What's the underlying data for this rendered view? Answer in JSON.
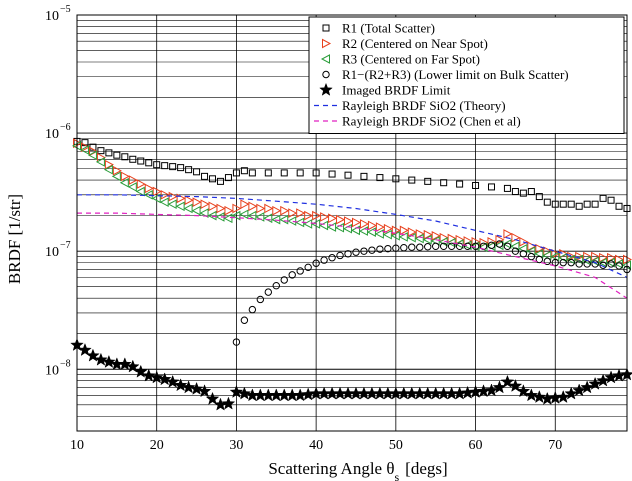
{
  "chart_data": {
    "type": "scatter",
    "title": "",
    "xlabel": "Scattering Angle θ",
    "xlabel_sub": "s",
    "xlabel_unit": "[degs]",
    "ylabel": "BRDF [1/str]",
    "xlim": [
      10,
      79
    ],
    "ylim": [
      3e-09,
      1e-05
    ],
    "yscale": "log",
    "grid": true,
    "legend_position": "top-right",
    "x_ticks": [
      10,
      20,
      30,
      40,
      50,
      60,
      70
    ],
    "y_ticks": [
      {
        "value": 1e-05,
        "mantissa": "10",
        "exp": "−5"
      },
      {
        "value": 1e-06,
        "mantissa": "10",
        "exp": "−6"
      },
      {
        "value": 1e-07,
        "mantissa": "10",
        "exp": "−7"
      },
      {
        "value": 1e-08,
        "mantissa": "10",
        "exp": "−8"
      }
    ],
    "series": [
      {
        "name": "R1 (Total Scatter)",
        "marker": "square",
        "color": "#000000",
        "x": [
          10,
          11,
          12,
          13,
          14,
          15,
          16,
          17,
          18,
          19,
          20,
          21,
          22,
          23,
          24,
          25,
          26,
          27,
          28,
          29,
          30,
          31,
          32,
          34,
          36,
          38,
          40,
          42,
          44,
          46,
          48,
          50,
          52,
          54,
          56,
          58,
          60,
          62,
          64,
          65,
          66,
          67,
          68,
          69,
          70,
          71,
          72,
          73,
          74,
          75,
          76,
          77,
          78,
          79
        ],
        "y": [
          8.5e-07,
          8.3e-07,
          7.6e-07,
          7.1e-07,
          6.8e-07,
          6.5e-07,
          6.3e-07,
          6e-07,
          5.8e-07,
          5.6e-07,
          5.4e-07,
          5.3e-07,
          5.2e-07,
          5.1e-07,
          4.9e-07,
          4.7e-07,
          4.3e-07,
          4.1e-07,
          3.9e-07,
          4.2e-07,
          4.6e-07,
          4.8e-07,
          4.6e-07,
          4.6e-07,
          4.6e-07,
          4.6e-07,
          4.6e-07,
          4.5e-07,
          4.4e-07,
          4.3e-07,
          4.2e-07,
          4.1e-07,
          4e-07,
          3.9e-07,
          3.8e-07,
          3.7e-07,
          3.6e-07,
          3.5e-07,
          3.4e-07,
          3.2e-07,
          3.1e-07,
          3.2e-07,
          2.9e-07,
          2.6e-07,
          2.5e-07,
          2.5e-07,
          2.5e-07,
          2.4e-07,
          2.5e-07,
          2.5e-07,
          2.8e-07,
          2.7e-07,
          2.4e-07,
          2.3e-07
        ]
      },
      {
        "name": "R2 (Centered on Near Spot)",
        "marker": "triangle-right",
        "color": "#e8401c",
        "x": [
          10,
          11,
          12,
          13,
          14,
          15,
          16,
          17,
          18,
          19,
          20,
          21,
          22,
          23,
          24,
          25,
          26,
          27,
          28,
          29,
          30,
          31,
          32,
          33,
          34,
          35,
          36,
          37,
          38,
          39,
          40,
          41,
          42,
          43,
          44,
          45,
          46,
          47,
          48,
          49,
          50,
          51,
          52,
          53,
          54,
          55,
          56,
          57,
          58,
          59,
          60,
          61,
          62,
          63,
          64,
          65,
          66,
          67,
          68,
          69,
          70,
          71,
          72,
          73,
          74,
          75,
          76,
          77,
          78,
          79
        ],
        "y": [
          8.2e-07,
          7.6e-07,
          7e-07,
          6.2e-07,
          5.4e-07,
          4.8e-07,
          4.3e-07,
          4e-07,
          3.7e-07,
          3.4e-07,
          3.2e-07,
          3e-07,
          2.9e-07,
          2.8e-07,
          2.7e-07,
          2.6e-07,
          2.5e-07,
          2.4e-07,
          2.3e-07,
          2.2e-07,
          2.3e-07,
          2.5e-07,
          2.4e-07,
          2.3e-07,
          2.3e-07,
          2.2e-07,
          2.2e-07,
          2.1e-07,
          2.1e-07,
          2e-07,
          2e-07,
          1.95e-07,
          1.9e-07,
          1.85e-07,
          1.8e-07,
          1.75e-07,
          1.7e-07,
          1.65e-07,
          1.6e-07,
          1.55e-07,
          1.5e-07,
          1.5e-07,
          1.45e-07,
          1.4e-07,
          1.38e-07,
          1.35e-07,
          1.3e-07,
          1.28e-07,
          1.25e-07,
          1.22e-07,
          1.2e-07,
          1.18e-07,
          1.2e-07,
          1.25e-07,
          1.4e-07,
          1.3e-07,
          1.2e-07,
          1.1e-07,
          1.05e-07,
          1e-07,
          9.5e-08,
          9.5e-08,
          9e-08,
          9e-08,
          9e-08,
          9e-08,
          8.8e-08,
          8.8e-08,
          8.5e-08,
          8.5e-08
        ]
      },
      {
        "name": "R3 (Centered on Far Spot)",
        "marker": "triangle-left",
        "color": "#2a9d3a",
        "x": [
          10,
          11,
          12,
          13,
          14,
          15,
          16,
          17,
          18,
          19,
          20,
          21,
          22,
          23,
          24,
          25,
          26,
          27,
          28,
          29,
          30,
          31,
          32,
          33,
          34,
          35,
          36,
          37,
          38,
          39,
          40,
          41,
          42,
          43,
          44,
          45,
          46,
          47,
          48,
          49,
          50,
          51,
          52,
          53,
          54,
          55,
          56,
          57,
          58,
          59,
          60,
          61,
          62,
          63,
          64,
          65,
          66,
          67,
          68,
          69,
          70,
          71,
          72,
          73,
          74,
          75,
          76,
          77,
          78,
          79
        ],
        "y": [
          7.8e-07,
          7.2e-07,
          6.5e-07,
          5.7e-07,
          4.9e-07,
          4.3e-07,
          3.8e-07,
          3.5e-07,
          3.2e-07,
          3e-07,
          2.8e-07,
          2.6e-07,
          2.5e-07,
          2.4e-07,
          2.3e-07,
          2.2e-07,
          2.1e-07,
          2e-07,
          1.95e-07,
          1.9e-07,
          2e-07,
          2.05e-07,
          2e-07,
          1.95e-07,
          1.9e-07,
          1.85e-07,
          1.85e-07,
          1.8e-07,
          1.75e-07,
          1.7e-07,
          1.7e-07,
          1.65e-07,
          1.6e-07,
          1.58e-07,
          1.55e-07,
          1.5e-07,
          1.48e-07,
          1.45e-07,
          1.4e-07,
          1.38e-07,
          1.35e-07,
          1.32e-07,
          1.3e-07,
          1.28e-07,
          1.25e-07,
          1.22e-07,
          1.2e-07,
          1.18e-07,
          1.15e-07,
          1.12e-07,
          1.1e-07,
          1.08e-07,
          1.1e-07,
          1.12e-07,
          1.15e-07,
          1.1e-07,
          1.05e-07,
          1e-07,
          9.5e-08,
          9.2e-08,
          9e-08,
          8.8e-08,
          8.5e-08,
          8.5e-08,
          8.3e-08,
          8.2e-08,
          8e-08,
          8e-08,
          7.8e-08,
          7.6e-08
        ]
      },
      {
        "name": "R1−(R2+R3) (Lower limit on Bulk Scatter)",
        "marker": "circle",
        "color": "#000000",
        "x": [
          30,
          31,
          32,
          33,
          34,
          35,
          36,
          37,
          38,
          39,
          40,
          41,
          42,
          43,
          44,
          45,
          46,
          47,
          48,
          49,
          50,
          51,
          52,
          53,
          54,
          55,
          56,
          57,
          58,
          59,
          60,
          61,
          62,
          63,
          64,
          65,
          66,
          67,
          68,
          69,
          70,
          71,
          72,
          73,
          74,
          75,
          76,
          77,
          78,
          79
        ],
        "y": [
          1.7e-08,
          2.6e-08,
          3.2e-08,
          3.9e-08,
          4.5e-08,
          5.1e-08,
          5.7e-08,
          6.3e-08,
          6.8e-08,
          7.3e-08,
          7.9e-08,
          8.4e-08,
          8.8e-08,
          9.2e-08,
          9.5e-08,
          9.8e-08,
          1e-07,
          1.02e-07,
          1.04e-07,
          1.05e-07,
          1.06e-07,
          1.07e-07,
          1.08e-07,
          1.08e-07,
          1.09e-07,
          1.1e-07,
          1.1e-07,
          1.1e-07,
          1.1e-07,
          1.1e-07,
          1.1e-07,
          1.1e-07,
          1.12e-07,
          1.15e-07,
          1.1e-07,
          1e-07,
          9.5e-08,
          9e-08,
          8.5e-08,
          8.2e-08,
          8e-08,
          8e-08,
          8e-08,
          7.8e-08,
          7.8e-08,
          7.8e-08,
          7.6e-08,
          7.8e-08,
          7.5e-08,
          7e-08
        ]
      },
      {
        "name": "Imaged BRDF Limit",
        "marker": "star",
        "color": "#000000",
        "x": [
          10,
          11,
          12,
          13,
          14,
          15,
          16,
          17,
          18,
          19,
          20,
          21,
          22,
          23,
          24,
          25,
          26,
          27,
          28,
          29,
          30,
          31,
          32,
          33,
          34,
          35,
          36,
          37,
          38,
          39,
          40,
          41,
          42,
          43,
          44,
          45,
          46,
          47,
          48,
          49,
          50,
          51,
          52,
          53,
          54,
          55,
          56,
          57,
          58,
          59,
          60,
          61,
          62,
          63,
          64,
          65,
          66,
          67,
          68,
          69,
          70,
          71,
          72,
          73,
          74,
          75,
          76,
          77,
          78,
          79
        ],
        "y": [
          1.6e-08,
          1.45e-08,
          1.3e-08,
          1.2e-08,
          1.15e-08,
          1.1e-08,
          1.1e-08,
          1.05e-08,
          9.5e-09,
          8.8e-09,
          8.5e-09,
          8.2e-09,
          7.8e-09,
          7.3e-09,
          7e-09,
          6.8e-09,
          6.5e-09,
          5.6e-09,
          5e-09,
          5.1e-09,
          6.4e-09,
          6.2e-09,
          6e-09,
          6e-09,
          6e-09,
          6e-09,
          6e-09,
          6e-09,
          6e-09,
          6.1e-09,
          6.2e-09,
          6.2e-09,
          6.2e-09,
          6.2e-09,
          6.2e-09,
          6.2e-09,
          6.2e-09,
          6.2e-09,
          6.2e-09,
          6.2e-09,
          6.2e-09,
          6.2e-09,
          6.2e-09,
          6.2e-09,
          6.2e-09,
          6.2e-09,
          6.2e-09,
          6.2e-09,
          6.2e-09,
          6.3e-09,
          6.4e-09,
          6.5e-09,
          6.6e-09,
          7e-09,
          7.8e-09,
          7.2e-09,
          6.5e-09,
          6e-09,
          5.8e-09,
          5.6e-09,
          5.7e-09,
          5.8e-09,
          6.2e-09,
          6.6e-09,
          7e-09,
          7.5e-09,
          8e-09,
          8.5e-09,
          8.8e-09,
          9e-09
        ]
      },
      {
        "name": "Rayleigh BRDF SiO2 (Theory)",
        "marker": "dashed-line",
        "color": "#1f2fe0",
        "x": [
          10,
          15,
          20,
          25,
          30,
          35,
          40,
          45,
          50,
          55,
          60,
          65,
          70,
          75,
          79
        ],
        "y": [
          3e-07,
          3e-07,
          2.95e-07,
          2.9e-07,
          2.8e-07,
          2.65e-07,
          2.5e-07,
          2.3e-07,
          2.05e-07,
          1.8e-07,
          1.5e-07,
          1.25e-07,
          1e-07,
          8e-08,
          6e-08
        ]
      },
      {
        "name": "Rayleigh BRDF SiO2 (Chen et al)",
        "marker": "dashed-line",
        "color": "#e020c0",
        "x": [
          10,
          15,
          20,
          25,
          30,
          35,
          40,
          45,
          50,
          55,
          60,
          65,
          70,
          75,
          79
        ],
        "y": [
          2.1e-07,
          2.1e-07,
          2.05e-07,
          2e-07,
          1.92e-07,
          1.83e-07,
          1.72e-07,
          1.58e-07,
          1.42e-07,
          1.25e-07,
          1.08e-07,
          9e-08,
          7.5e-08,
          6e-08,
          4e-08
        ]
      }
    ]
  }
}
